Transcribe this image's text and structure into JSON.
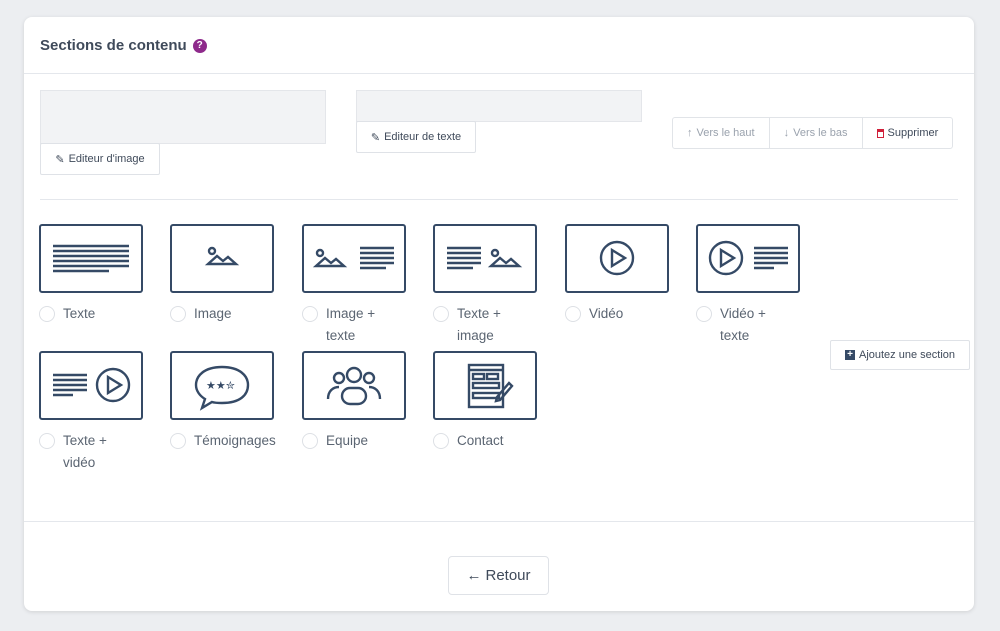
{
  "header": {
    "title": "Sections de contenu",
    "help_icon": "question-circle-icon",
    "help_color": "#8e2a8b"
  },
  "editors": {
    "image_label": "Editeur d'image",
    "text_label": "Editeur de texte"
  },
  "actions": {
    "up": "Vers le haut",
    "down": "Vers le bas",
    "delete": "Supprimer",
    "delete_color": "#d0203a"
  },
  "add_section": "Ajoutez une section",
  "options": [
    {
      "label": "Texte",
      "icon": "text-lines"
    },
    {
      "label": "Image",
      "icon": "image"
    },
    {
      "label": "Image + texte",
      "icon": "image-text"
    },
    {
      "label": "Texte + image",
      "icon": "text-image"
    },
    {
      "label": "Vidéo",
      "icon": "video"
    },
    {
      "label": "Vidéo + texte",
      "icon": "video-text"
    },
    {
      "label": "Texte + vidéo",
      "icon": "text-video"
    },
    {
      "label": "Témoignages",
      "icon": "testimonials"
    },
    {
      "label": "Equipe",
      "icon": "team"
    },
    {
      "label": "Contact",
      "icon": "contact-form"
    }
  ],
  "footer": {
    "back": "Retour"
  }
}
